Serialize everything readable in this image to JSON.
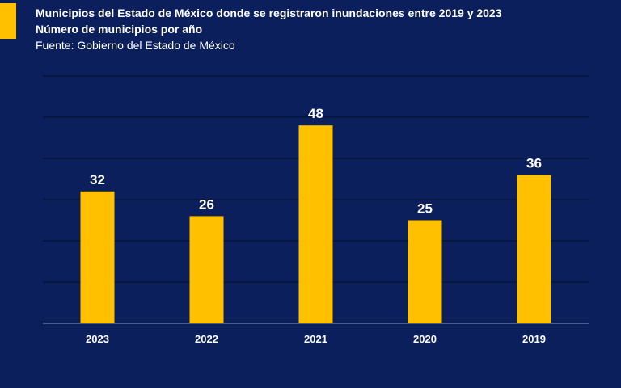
{
  "header": {
    "title": "Municipios del Estado de México donde se registraron inundaciones entre 2019 y 2023",
    "subtitle": "Número de municipios por año",
    "source": "Fuente: Gobierno del Estado de México"
  },
  "colors": {
    "background": "#0b1f5c",
    "bar": "#ffc000",
    "text": "#ffffff",
    "grid": "#000000"
  },
  "chart_data": {
    "type": "bar",
    "title": "Municipios del Estado de México donde se registraron inundaciones entre 2019 y 2023",
    "subtitle": "Número de municipios por año",
    "categories": [
      "2023",
      "2022",
      "2021",
      "2020",
      "2019"
    ],
    "values": [
      32,
      26,
      48,
      25,
      36
    ],
    "ylim": [
      0,
      60
    ],
    "grid": true,
    "data_labels": true,
    "legend": "none",
    "xlabel": "",
    "ylabel": ""
  }
}
